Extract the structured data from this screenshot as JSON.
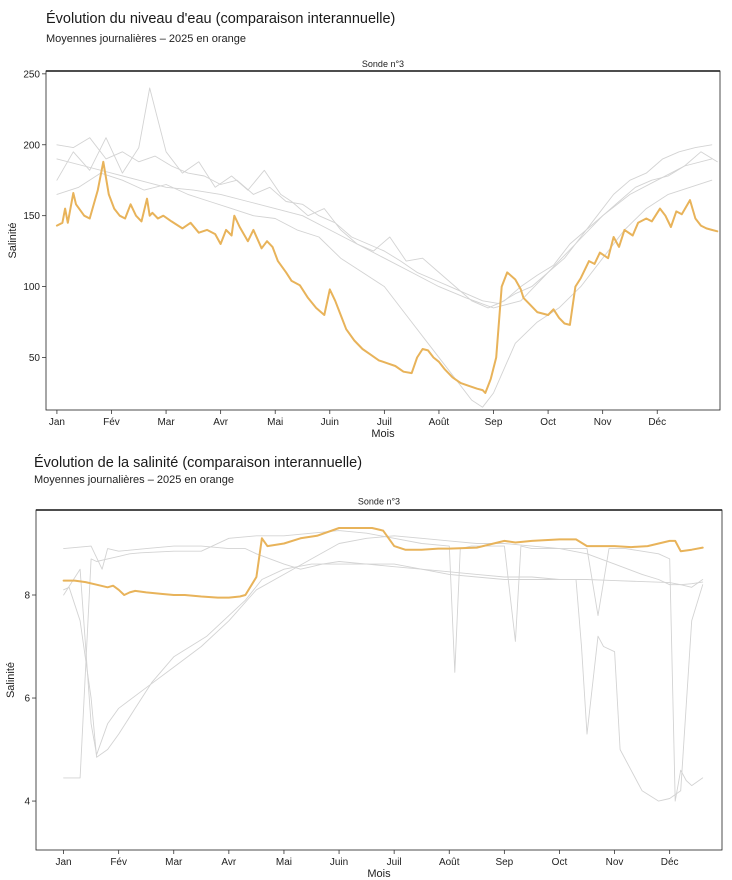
{
  "chart_data": [
    {
      "type": "line",
      "title": "Évolution du niveau d'eau (comparaison interannuelle)",
      "subtitle": "Moyennes journalières – 2025 en orange",
      "facet_label": "Sonde n°3",
      "xlabel": "Mois",
      "ylabel": "Salinité",
      "ylim": [
        13,
        252
      ],
      "yticks": [
        50,
        100,
        150,
        200,
        250
      ],
      "xticks": [
        "Jan",
        "Fév",
        "Mar",
        "Avr",
        "Mai",
        "Juin",
        "Juil",
        "Août",
        "Sep",
        "Oct",
        "Nov",
        "Déc"
      ],
      "xlim": [
        -0.2,
        12.15
      ],
      "highlight_color": "#E8B35A",
      "background_color": "#D3D3D3",
      "grid": false,
      "series": [
        {
          "highlight": true,
          "x": [
            0,
            0.1,
            0.15,
            0.2,
            0.3,
            0.35,
            0.5,
            0.6,
            0.75,
            0.85,
            0.95,
            1.05,
            1.15,
            1.25,
            1.35,
            1.45,
            1.55,
            1.65,
            1.7,
            1.75,
            1.85,
            1.95,
            2.1,
            2.3,
            2.45,
            2.6,
            2.75,
            2.9,
            3.0,
            3.1,
            3.2,
            3.25,
            3.35,
            3.5,
            3.6,
            3.75,
            3.85,
            3.95,
            4.05,
            4.2,
            4.3,
            4.45,
            4.6,
            4.75,
            4.9,
            5.0,
            5.1,
            5.2,
            5.3,
            5.45,
            5.6,
            5.75,
            5.9,
            6.05,
            6.2,
            6.35,
            6.5,
            6.6,
            6.7,
            6.8,
            6.9,
            7.0,
            7.1,
            7.25,
            7.4,
            7.55,
            7.7,
            7.8,
            7.85,
            7.9,
            7.95,
            8.05,
            8.15,
            8.25,
            8.4,
            8.5,
            8.55,
            8.65,
            8.8,
            9.0,
            9.1,
            9.2,
            9.3,
            9.4,
            9.5,
            9.6,
            9.75,
            9.85,
            9.95,
            10.1,
            10.2,
            10.3,
            10.4,
            10.55,
            10.65,
            10.8,
            10.9,
            11.05,
            11.15,
            11.25,
            11.35,
            11.45,
            11.6,
            11.7,
            11.8,
            11.9,
            12.0,
            12.1
          ],
          "y": [
            143,
            145,
            155,
            145,
            166,
            158,
            150,
            148,
            168,
            188,
            165,
            155,
            150,
            148,
            158,
            150,
            146,
            162,
            150,
            152,
            148,
            150,
            146,
            141,
            145,
            138,
            140,
            137,
            130,
            140,
            136,
            150,
            142,
            132,
            140,
            127,
            132,
            128,
            118,
            110,
            104,
            101,
            92,
            85,
            80,
            98,
            90,
            80,
            70,
            62,
            56,
            52,
            48,
            46,
            44,
            40,
            39,
            50,
            56,
            55,
            50,
            47,
            42,
            36,
            32,
            30,
            28,
            27,
            25,
            30,
            35,
            50,
            100,
            110,
            105,
            98,
            92,
            88,
            82,
            80,
            84,
            78,
            74,
            73,
            100,
            106,
            118,
            116,
            124,
            120,
            135,
            128,
            140,
            136,
            145,
            148,
            146,
            155,
            150,
            142,
            153,
            151,
            161,
            148,
            143,
            141,
            140,
            139
          ]
        },
        {
          "x": [
            0,
            0.3,
            0.6,
            0.9,
            1.2,
            1.5,
            1.7,
            2.0,
            2.3,
            2.6,
            2.9,
            3.2,
            3.5,
            3.8,
            4.1,
            4.3,
            4.6,
            4.9,
            5.2,
            5.5,
            5.8,
            6.1,
            6.4,
            6.7,
            7.0,
            7.3,
            7.6,
            7.9,
            8.2,
            8.5,
            8.8,
            9.1,
            9.4,
            9.7,
            10.0,
            10.3,
            10.6,
            10.9,
            11.2,
            11.5,
            11.8,
            12.1
          ],
          "y": [
            175,
            195,
            182,
            205,
            180,
            198,
            240,
            195,
            180,
            188,
            170,
            178,
            168,
            182,
            165,
            160,
            150,
            155,
            140,
            130,
            125,
            135,
            118,
            120,
            110,
            100,
            90,
            85,
            90,
            100,
            108,
            115,
            130,
            140,
            150,
            160,
            170,
            175,
            178,
            185,
            195,
            188
          ]
        },
        {
          "x": [
            0,
            0.3,
            0.6,
            0.9,
            1.2,
            1.5,
            1.8,
            2.1,
            2.4,
            2.7,
            3.0,
            3.3,
            3.6,
            3.9,
            4.2,
            4.5,
            4.8,
            5.1,
            5.4,
            5.7,
            6.0,
            6.3,
            6.6,
            6.9,
            7.2,
            7.5,
            7.8,
            8.1,
            8.4,
            8.7,
            9.0,
            9.3,
            9.6,
            9.9,
            10.2,
            10.5,
            10.8,
            11.1,
            11.4,
            11.7,
            12.0
          ],
          "y": [
            200,
            198,
            205,
            190,
            195,
            188,
            192,
            185,
            180,
            178,
            172,
            175,
            165,
            170,
            160,
            158,
            150,
            145,
            135,
            130,
            125,
            118,
            110,
            105,
            100,
            95,
            90,
            88,
            95,
            100,
            110,
            120,
            135,
            150,
            165,
            175,
            180,
            190,
            195,
            198,
            200
          ]
        },
        {
          "x": [
            0,
            0.4,
            0.8,
            1.2,
            1.6,
            2.0,
            2.4,
            2.8,
            3.2,
            3.6,
            4.0,
            4.4,
            4.8,
            5.2,
            5.6,
            6.0,
            6.4,
            6.8,
            7.2,
            7.6,
            7.8,
            8.0,
            8.4,
            8.8,
            9.2,
            9.6,
            10.0,
            10.4,
            10.8,
            11.2,
            11.6,
            12.0
          ],
          "y": [
            165,
            170,
            180,
            175,
            168,
            172,
            165,
            160,
            155,
            150,
            148,
            140,
            135,
            120,
            110,
            100,
            80,
            60,
            40,
            20,
            15,
            25,
            60,
            75,
            85,
            100,
            120,
            140,
            155,
            165,
            170,
            175
          ]
        },
        {
          "x": [
            0,
            0.5,
            1.0,
            1.5,
            2.0,
            2.5,
            3.0,
            3.5,
            4.0,
            4.5,
            5.0,
            5.5,
            6.0,
            6.5,
            7.0,
            7.5,
            8.0,
            8.5,
            9.0,
            9.5,
            10.0,
            10.5,
            11.0,
            11.5,
            12.0
          ],
          "y": [
            190,
            185,
            180,
            175,
            170,
            168,
            165,
            160,
            155,
            150,
            140,
            130,
            120,
            110,
            100,
            92,
            85,
            90,
            110,
            130,
            150,
            165,
            175,
            185,
            190
          ]
        }
      ]
    },
    {
      "type": "line",
      "title": "Évolution de la salinité (comparaison interannuelle)",
      "subtitle": "Moyennes journalières – 2025 en orange",
      "facet_label": "Sonde n°3",
      "xlabel": "Mois",
      "ylabel": "Salinité",
      "ylim": [
        3.05,
        9.65
      ],
      "yticks": [
        4,
        6,
        8
      ],
      "xticks": [
        "Jan",
        "Fév",
        "Mar",
        "Avr",
        "Mai",
        "Juin",
        "Juil",
        "Août",
        "Sep",
        "Oct",
        "Nov",
        "Déc"
      ],
      "xlim": [
        -0.5,
        11.95
      ],
      "highlight_color": "#E8B35A",
      "background_color": "#D3D3D3",
      "grid": false,
      "series": [
        {
          "highlight": true,
          "x": [
            0,
            0.2,
            0.4,
            0.6,
            0.8,
            0.9,
            1.0,
            1.1,
            1.2,
            1.3,
            1.5,
            1.8,
            2.0,
            2.2,
            2.5,
            2.8,
            3.0,
            3.2,
            3.3,
            3.5,
            3.6,
            3.7,
            4.0,
            4.3,
            4.6,
            5.0,
            5.3,
            5.6,
            5.8,
            6.0,
            6.2,
            6.5,
            6.8,
            7.0,
            7.5,
            8.0,
            8.2,
            8.5,
            9.0,
            9.3,
            9.5,
            9.8,
            10.0,
            10.3,
            10.6,
            11.0,
            11.1,
            11.2,
            11.4,
            11.6
          ],
          "y": [
            8.28,
            8.28,
            8.25,
            8.2,
            8.15,
            8.18,
            8.1,
            8.0,
            8.05,
            8.08,
            8.05,
            8.02,
            8.0,
            8.0,
            7.97,
            7.95,
            7.95,
            7.97,
            8.0,
            8.35,
            9.1,
            8.95,
            9.0,
            9.1,
            9.15,
            9.3,
            9.3,
            9.3,
            9.25,
            8.95,
            8.88,
            8.88,
            8.9,
            8.9,
            8.92,
            9.05,
            9.02,
            9.05,
            9.08,
            9.08,
            8.95,
            8.95,
            8.95,
            8.93,
            8.95,
            9.05,
            9.05,
            8.85,
            8.88,
            8.92
          ]
        },
        {
          "x": [
            0,
            0.3,
            0.5,
            0.6,
            0.8,
            1.0,
            1.2,
            1.4,
            2.0,
            2.5,
            3.0,
            3.5,
            4.0,
            4.5,
            5.0,
            5.5,
            6.0,
            6.5,
            7.0,
            7.1,
            7.2,
            7.4,
            7.8,
            8.0,
            8.2,
            8.3,
            8.5,
            8.8,
            9.0,
            9.5,
            9.7,
            9.9,
            10.0,
            10.2,
            10.5,
            10.8,
            11.0,
            11.1,
            11.2,
            11.3,
            11.4,
            11.6
          ],
          "y": [
            4.45,
            4.45,
            8.7,
            8.65,
            8.7,
            8.75,
            8.8,
            8.82,
            8.85,
            8.85,
            9.1,
            9.15,
            9.15,
            9.2,
            9.25,
            9.2,
            9.1,
            9.0,
            8.95,
            6.5,
            8.9,
            8.95,
            8.95,
            8.95,
            7.1,
            8.95,
            8.9,
            8.9,
            8.9,
            8.9,
            7.6,
            8.9,
            8.9,
            8.9,
            8.85,
            8.8,
            8.7,
            4.0,
            4.6,
            4.4,
            4.3,
            4.45
          ]
        },
        {
          "x": [
            0,
            0.1,
            0.3,
            0.5,
            0.6,
            0.8,
            1.0,
            1.3,
            1.6,
            2.0,
            2.3,
            2.6,
            3.0,
            3.3,
            3.6,
            4.0,
            4.5,
            5.0,
            5.5,
            6.0,
            6.5,
            7.0,
            7.5,
            8.0,
            8.5,
            9.0,
            9.3,
            9.4,
            9.5,
            9.7,
            9.8,
            10.0,
            10.1,
            10.3,
            10.5,
            10.8,
            11.0,
            11.2,
            11.4,
            11.6
          ],
          "y": [
            8.1,
            8.15,
            7.5,
            6.0,
            4.85,
            5.0,
            5.3,
            5.8,
            6.3,
            6.8,
            7.0,
            7.2,
            7.6,
            7.9,
            8.3,
            8.5,
            8.6,
            8.6,
            8.6,
            8.6,
            8.5,
            8.45,
            8.4,
            8.35,
            8.35,
            8.3,
            8.3,
            7.0,
            5.3,
            7.2,
            7.0,
            6.9,
            5.0,
            4.6,
            4.2,
            4.0,
            4.05,
            4.2,
            7.5,
            8.2
          ]
        },
        {
          "x": [
            0,
            0.3,
            0.5,
            0.6,
            0.8,
            1.0,
            1.5,
            2.0,
            2.5,
            3.0,
            3.5,
            4.0,
            4.5,
            5.0,
            5.5,
            6.0,
            6.5,
            7.0,
            7.5,
            8.0,
            8.5,
            9.0,
            9.5,
            10.0,
            10.5,
            10.8,
            11.0,
            11.2,
            11.4,
            11.6
          ],
          "y": [
            8.0,
            8.5,
            5.5,
            4.9,
            5.5,
            5.8,
            6.2,
            6.6,
            7.0,
            7.5,
            8.1,
            8.4,
            8.7,
            9.0,
            9.1,
            9.15,
            9.1,
            9.05,
            9.0,
            9.0,
            8.95,
            8.9,
            8.8,
            8.6,
            8.4,
            8.3,
            8.2,
            8.2,
            8.15,
            8.3
          ]
        },
        {
          "x": [
            0,
            0.5,
            0.7,
            0.8,
            1.0,
            1.5,
            2.0,
            2.5,
            3.0,
            3.3,
            3.5,
            4.0,
            4.3,
            4.5,
            4.7,
            5.0,
            5.5,
            6.0,
            6.5,
            7.0,
            7.5,
            8.0,
            8.5,
            9.0,
            9.5,
            10.0,
            10.5,
            11.0,
            11.2,
            11.4,
            11.6
          ],
          "y": [
            8.9,
            8.95,
            8.5,
            8.9,
            8.85,
            8.9,
            8.95,
            8.95,
            8.9,
            8.9,
            8.8,
            8.6,
            8.5,
            8.55,
            8.6,
            8.65,
            8.6,
            8.55,
            8.5,
            8.4,
            8.35,
            8.3,
            8.3,
            8.3,
            8.3,
            8.28,
            8.26,
            8.24,
            8.2,
            8.22,
            8.25
          ]
        }
      ]
    }
  ]
}
